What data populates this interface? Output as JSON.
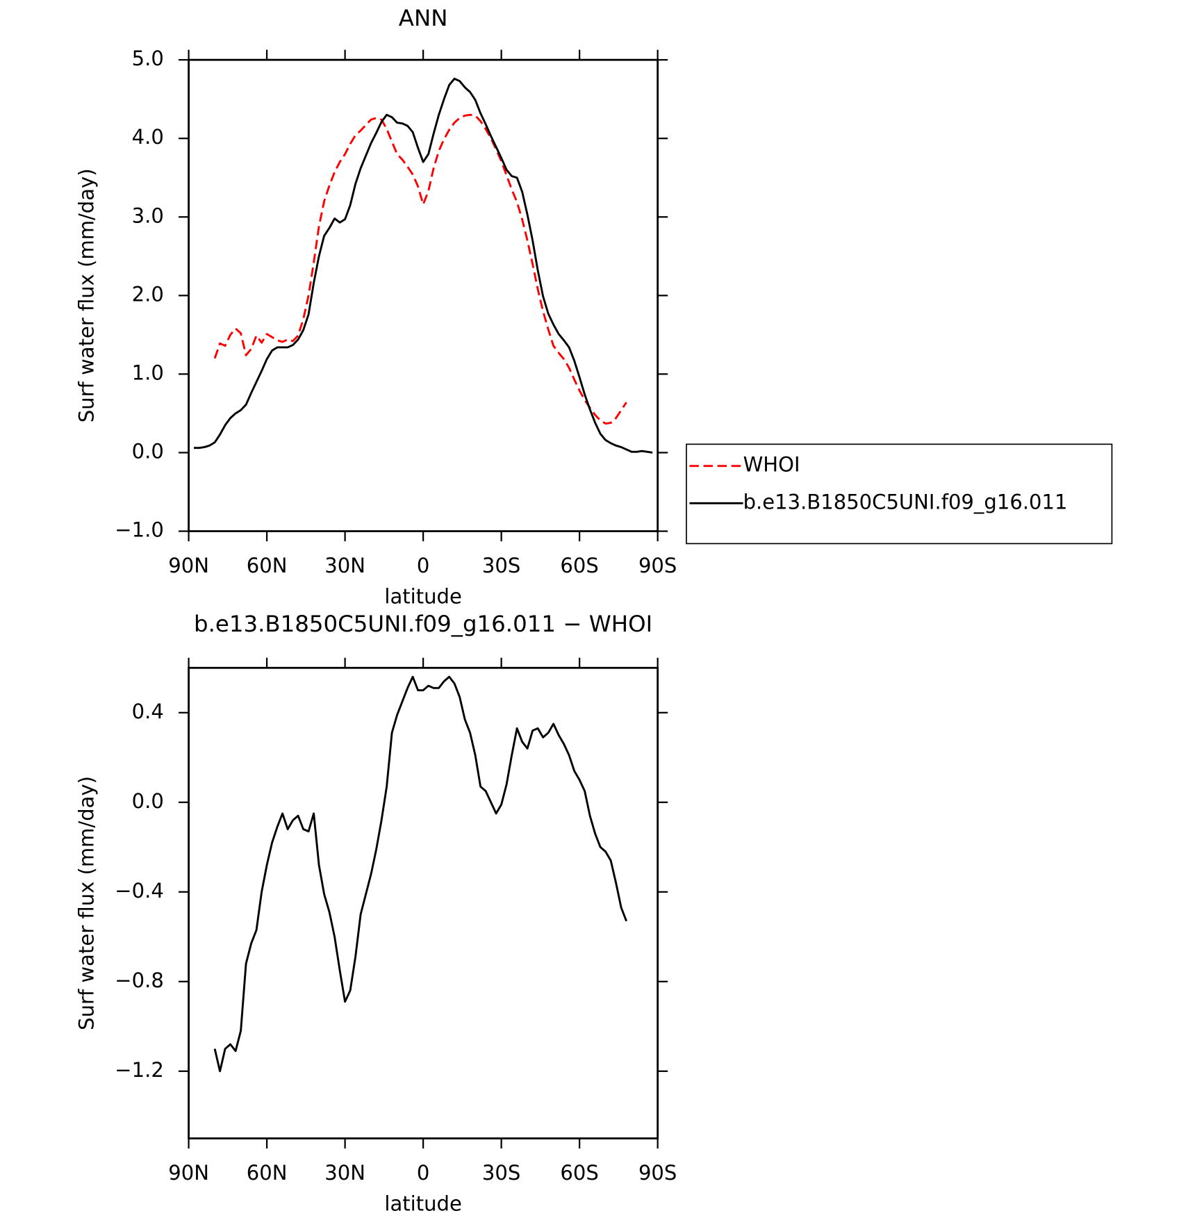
{
  "chart_data": [
    {
      "type": "line",
      "title": "ANN",
      "xlabel": "latitude",
      "ylabel": "Surf water flux (mm/day)",
      "x": [
        88,
        86,
        84,
        82,
        80,
        78,
        76,
        74,
        72,
        70,
        68,
        66,
        64,
        62,
        60,
        58,
        56,
        54,
        52,
        50,
        48,
        46,
        44,
        42,
        40,
        38,
        36,
        34,
        32,
        30,
        28,
        26,
        24,
        22,
        20,
        18,
        16,
        14,
        12,
        10,
        8,
        6,
        4,
        2,
        0,
        -2,
        -4,
        -6,
        -8,
        -10,
        -12,
        -14,
        -16,
        -18,
        -20,
        -22,
        -24,
        -26,
        -28,
        -30,
        -32,
        -34,
        -36,
        -38,
        -40,
        -42,
        -44,
        -46,
        -48,
        -50,
        -52,
        -54,
        -56,
        -58,
        -60,
        -62,
        -64,
        -66,
        -68,
        -70,
        -72,
        -74,
        -76,
        -78,
        -80,
        -82,
        -84,
        -86,
        -88
      ],
      "xlim": [
        90,
        -90
      ],
      "xticks": [
        {
          "value": 90,
          "label": "90N"
        },
        {
          "value": 60,
          "label": "60N"
        },
        {
          "value": 30,
          "label": "30N"
        },
        0,
        {
          "value": -30,
          "label": "30S"
        },
        {
          "value": -60,
          "label": "60S"
        },
        {
          "value": -90,
          "label": "90S"
        }
      ],
      "ylim": [
        -1,
        5
      ],
      "yticks": [
        {
          "value": -1,
          "label": "−1.0"
        },
        {
          "value": 0,
          "label": "0.0"
        },
        {
          "value": 1,
          "label": "1.0"
        },
        {
          "value": 2,
          "label": "2.0"
        },
        {
          "value": 3,
          "label": "3.0"
        },
        {
          "value": 4,
          "label": "4.0"
        },
        {
          "value": 5,
          "label": "5.0"
        }
      ],
      "legend": "right",
      "series": [
        {
          "name": "WHOI",
          "color": "#ff0000",
          "linestyle": "dashed",
          "values": [
            null,
            null,
            null,
            null,
            1.2,
            1.39,
            1.36,
            1.5,
            1.58,
            1.52,
            1.24,
            1.32,
            1.49,
            1.4,
            1.51,
            1.47,
            1.43,
            1.41,
            1.44,
            1.42,
            1.49,
            1.7,
            2.0,
            2.42,
            2.88,
            3.2,
            3.4,
            3.57,
            3.7,
            3.8,
            3.93,
            4.04,
            4.1,
            4.17,
            4.24,
            4.26,
            4.24,
            4.12,
            3.96,
            3.8,
            3.73,
            3.64,
            3.54,
            3.39,
            3.16,
            3.33,
            3.62,
            3.84,
            3.99,
            4.11,
            4.2,
            4.26,
            4.29,
            4.3,
            4.29,
            4.22,
            4.12,
            4.0,
            3.86,
            3.71,
            3.53,
            3.35,
            3.19,
            2.97,
            2.7,
            2.4,
            2.08,
            1.8,
            1.57,
            1.36,
            1.27,
            1.19,
            1.08,
            0.93,
            0.79,
            0.67,
            0.57,
            0.48,
            0.41,
            0.37,
            0.38,
            0.44,
            0.54,
            0.64,
            null,
            null,
            null,
            null,
            null
          ]
        },
        {
          "name": "b.e13.B1850C5UNI.f09_g16.011",
          "color": "#000000",
          "linestyle": "solid",
          "values": [
            0.06,
            0.06,
            0.07,
            0.09,
            0.13,
            0.23,
            0.35,
            0.44,
            0.5,
            0.54,
            0.61,
            0.76,
            0.9,
            1.04,
            1.19,
            1.3,
            1.34,
            1.34,
            1.34,
            1.37,
            1.44,
            1.56,
            1.76,
            2.16,
            2.5,
            2.76,
            2.86,
            2.98,
            2.93,
            2.97,
            3.15,
            3.42,
            3.62,
            3.78,
            3.94,
            4.07,
            4.21,
            4.3,
            4.27,
            4.2,
            4.19,
            4.16,
            4.08,
            3.88,
            3.7,
            3.8,
            4.06,
            4.3,
            4.5,
            4.68,
            4.76,
            4.73,
            4.65,
            4.59,
            4.49,
            4.32,
            4.18,
            4.03,
            3.89,
            3.75,
            3.6,
            3.52,
            3.5,
            3.32,
            3.03,
            2.7,
            2.32,
            1.99,
            1.77,
            1.63,
            1.51,
            1.43,
            1.34,
            1.17,
            0.96,
            0.74,
            0.55,
            0.38,
            0.24,
            0.16,
            0.12,
            0.09,
            0.07,
            0.04,
            0.01,
            0.01,
            0.02,
            0.01,
            0.0
          ]
        }
      ]
    },
    {
      "type": "line",
      "title": "b.e13.B1850C5UNI.f09_g16.011 − WHOI",
      "xlabel": "latitude",
      "ylabel": "Surf water flux (mm/day)",
      "x": [
        88,
        86,
        84,
        82,
        80,
        78,
        76,
        74,
        72,
        70,
        68,
        66,
        64,
        62,
        60,
        58,
        56,
        54,
        52,
        50,
        48,
        46,
        44,
        42,
        40,
        38,
        36,
        34,
        32,
        30,
        28,
        26,
        24,
        22,
        20,
        18,
        16,
        14,
        12,
        10,
        8,
        6,
        4,
        2,
        0,
        -2,
        -4,
        -6,
        -8,
        -10,
        -12,
        -14,
        -16,
        -18,
        -20,
        -22,
        -24,
        -26,
        -28,
        -30,
        -32,
        -34,
        -36,
        -38,
        -40,
        -42,
        -44,
        -46,
        -48,
        -50,
        -52,
        -54,
        -56,
        -58,
        -60,
        -62,
        -64,
        -66,
        -68,
        -70,
        -72,
        -74,
        -76,
        -78,
        -80,
        -82,
        -84,
        -86,
        -88
      ],
      "xlim": [
        90,
        -90
      ],
      "xticks": [
        {
          "value": 90,
          "label": "90N"
        },
        {
          "value": 60,
          "label": "60N"
        },
        {
          "value": 30,
          "label": "30N"
        },
        0,
        {
          "value": -30,
          "label": "30S"
        },
        {
          "value": -60,
          "label": "60S"
        },
        {
          "value": -90,
          "label": "90S"
        }
      ],
      "ylim": [
        -1.5,
        0.6
      ],
      "yticks": [
        {
          "value": -1.2,
          "label": "−1.2"
        },
        {
          "value": -0.8,
          "label": "−0.8"
        },
        {
          "value": -0.4,
          "label": "−0.4"
        },
        {
          "value": 0,
          "label": "0.0"
        },
        0.4
      ],
      "series": [
        {
          "color": "#000000",
          "linestyle": "solid",
          "values": [
            null,
            null,
            null,
            null,
            -1.1,
            -1.2,
            -1.1,
            -1.08,
            -1.11,
            -1.02,
            -0.72,
            -0.63,
            -0.57,
            -0.4,
            -0.28,
            -0.18,
            -0.11,
            -0.05,
            -0.12,
            -0.08,
            -0.06,
            -0.12,
            -0.13,
            -0.05,
            -0.28,
            -0.41,
            -0.49,
            -0.6,
            -0.75,
            -0.89,
            -0.84,
            -0.69,
            -0.5,
            -0.41,
            -0.32,
            -0.21,
            -0.08,
            0.07,
            0.31,
            0.39,
            0.45,
            0.51,
            0.56,
            0.5,
            0.5,
            0.52,
            0.51,
            0.51,
            0.54,
            0.56,
            0.53,
            0.47,
            0.37,
            0.31,
            0.21,
            0.07,
            0.05,
            0.0,
            -0.05,
            -0.01,
            0.08,
            0.21,
            0.33,
            0.27,
            0.24,
            0.32,
            0.33,
            0.29,
            0.31,
            0.35,
            0.3,
            0.26,
            0.21,
            0.14,
            0.1,
            0.05,
            -0.06,
            -0.14,
            -0.2,
            -0.22,
            -0.26,
            -0.36,
            -0.47,
            -0.53,
            null,
            null,
            null,
            null,
            null
          ]
        }
      ]
    }
  ]
}
